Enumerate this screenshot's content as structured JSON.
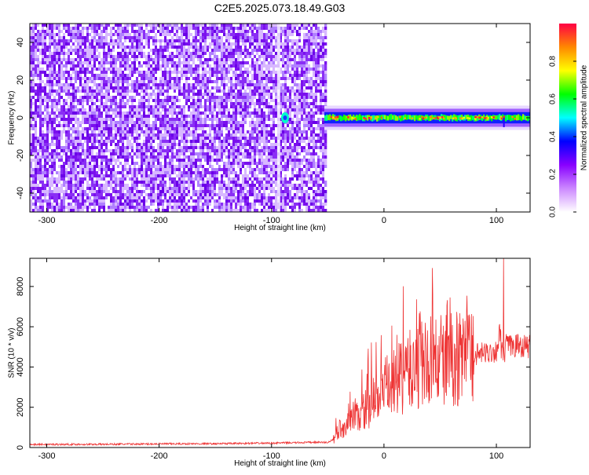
{
  "title": "C2E5.2025.073.18.49.G03",
  "chart_data": [
    {
      "type": "heatmap",
      "xlabel": "Height of straight line (km)",
      "ylabel": "Frequency (Hz)",
      "xlim": [
        -315,
        130
      ],
      "ylim": [
        -50,
        50
      ],
      "x_ticks": [
        -300,
        -200,
        -100,
        0,
        100
      ],
      "y_ticks": [
        -40,
        -20,
        0,
        20,
        40
      ],
      "grid": false,
      "colorbar": {
        "label": "Normalized spectral amplitude",
        "range": [
          0,
          1
        ],
        "ticks": [
          0.0,
          0.2,
          0.4,
          0.6,
          0.8
        ],
        "colors": [
          "#ffffff",
          "#cc88ff",
          "#8800ff",
          "#0000ff",
          "#00ffff",
          "#00ff00",
          "#ffff00",
          "#ff8800",
          "#ff0044"
        ]
      },
      "regions": [
        {
          "x": [
            -315,
            -53
          ],
          "freq": [
            -50,
            50
          ],
          "amplitude": [
            0.05,
            0.2
          ],
          "description": "noise"
        },
        {
          "x": [
            -53,
            130
          ],
          "freq_center": 0,
          "freq_halfwidth": 3,
          "amplitude": [
            0.5,
            1.0
          ],
          "description": "carrier signal"
        }
      ]
    },
    {
      "type": "line",
      "xlabel": "Height of straight line (km)",
      "ylabel": "SNR (10 * v/v)",
      "xlim": [
        -315,
        130
      ],
      "ylim": [
        0,
        9400
      ],
      "x_ticks": [
        -300,
        -200,
        -100,
        0,
        100
      ],
      "y_ticks": [
        0,
        2000,
        4000,
        6000,
        8000
      ],
      "grid": false,
      "series": [
        {
          "color": "#ee3333",
          "x": [
            -315,
            -250,
            -200,
            -150,
            -100,
            -80,
            -60,
            -50,
            -45,
            -40,
            -30,
            -20,
            -10,
            0,
            10,
            20,
            30,
            40,
            50,
            60,
            70,
            80,
            90,
            100,
            106,
            110,
            120,
            130
          ],
          "values": [
            150,
            160,
            180,
            190,
            220,
            240,
            260,
            250,
            400,
            900,
            1200,
            1700,
            2300,
            2900,
            3200,
            3700,
            4000,
            4200,
            4300,
            4400,
            4500,
            4600,
            4700,
            4800,
            6500,
            5000,
            5100,
            5000
          ]
        }
      ]
    }
  ]
}
